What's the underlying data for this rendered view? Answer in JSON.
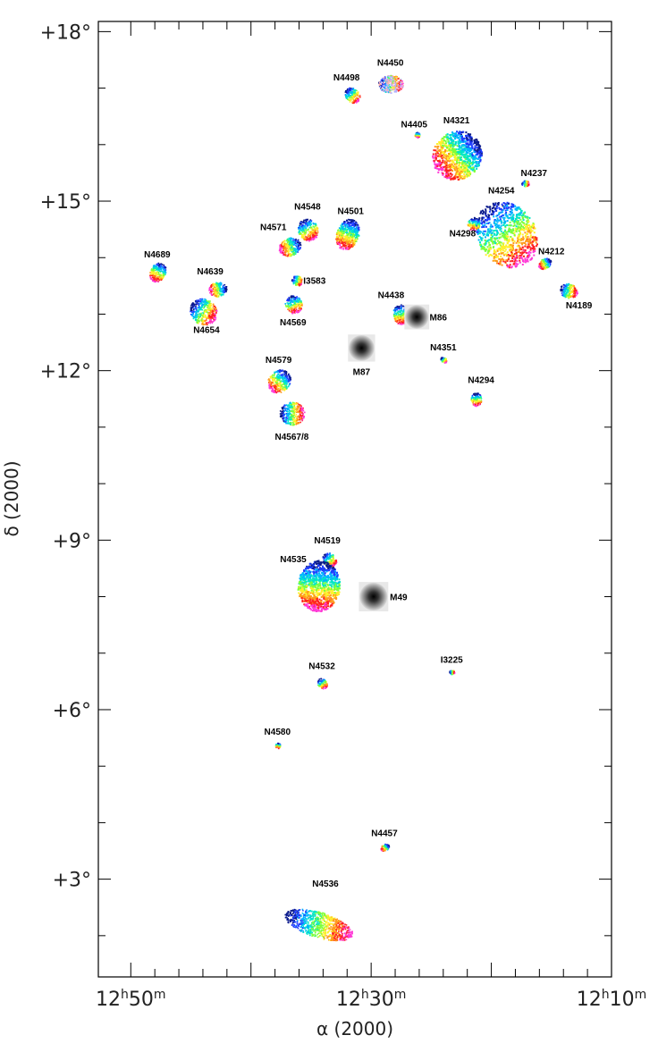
{
  "axes": {
    "x_title": "α (2000)",
    "y_title": "δ (2000)",
    "x_ticks": [
      {
        "h": "12",
        "hsup": "h",
        "m": "50",
        "msup": "m",
        "ra_min": 50
      },
      {
        "h": "12",
        "hsup": "h",
        "m": "30",
        "msup": "m",
        "ra_min": 30
      },
      {
        "h": "12",
        "hsup": "h",
        "m": "10",
        "msup": "m",
        "ra_min": 10
      }
    ],
    "y_ticks": [
      {
        "label": "+18°",
        "dec": 18
      },
      {
        "label": "+15°",
        "dec": 15
      },
      {
        "label": "+12°",
        "dec": 12
      },
      {
        "label": "+9°",
        "dec": 9
      },
      {
        "label": "+6°",
        "dec": 6
      },
      {
        "label": "+3°",
        "dec": 3
      }
    ]
  },
  "galaxies": [
    {
      "name": "N4450",
      "ra": 28.4,
      "dec": 17.08,
      "size": 0.22,
      "style": "faint"
    },
    {
      "name": "N4498",
      "ra": 31.6,
      "dec": 16.88,
      "size": 0.15,
      "style": "vel"
    },
    {
      "name": "N4405",
      "ra": 26.2,
      "dec": 16.18,
      "size": 0.05,
      "style": "vel"
    },
    {
      "name": "N4321",
      "ra": 22.9,
      "dec": 15.82,
      "size": 0.45,
      "style": "big"
    },
    {
      "name": "N4237",
      "ra": 17.2,
      "dec": 15.32,
      "size": 0.07,
      "style": "vel"
    },
    {
      "name": "N4254",
      "ra": 18.8,
      "dec": 14.42,
      "size": 0.62,
      "style": "big"
    },
    {
      "name": "N4298",
      "ra": 21.5,
      "dec": 14.6,
      "size": 0.12,
      "style": "vel"
    },
    {
      "name": "N4212",
      "ra": 15.6,
      "dec": 13.9,
      "size": 0.12,
      "style": "vel"
    },
    {
      "name": "N4189",
      "ra": 13.6,
      "dec": 13.42,
      "size": 0.16,
      "style": "vel"
    },
    {
      "name": "N4548",
      "ra": 35.3,
      "dec": 14.5,
      "size": 0.2,
      "style": "vel"
    },
    {
      "name": "N4501",
      "ra": 32.0,
      "dec": 14.42,
      "size": 0.28,
      "style": "vel"
    },
    {
      "name": "N4571",
      "ra": 36.8,
      "dec": 14.2,
      "size": 0.2,
      "style": "vel"
    },
    {
      "name": "I3583",
      "ra": 36.2,
      "dec": 13.6,
      "size": 0.1,
      "style": "vel"
    },
    {
      "name": "N4569",
      "ra": 36.5,
      "dec": 13.18,
      "size": 0.16,
      "style": "vel"
    },
    {
      "name": "N4689",
      "ra": 47.8,
      "dec": 13.75,
      "size": 0.18,
      "style": "vel"
    },
    {
      "name": "N4639",
      "ra": 42.8,
      "dec": 13.45,
      "size": 0.16,
      "style": "vel"
    },
    {
      "name": "N4654",
      "ra": 44.0,
      "dec": 13.05,
      "size": 0.25,
      "style": "vel"
    },
    {
      "name": "N4438",
      "ra": 27.6,
      "dec": 13.0,
      "size": 0.18,
      "style": "vel"
    },
    {
      "name": "M86",
      "ra": 26.2,
      "dec": 12.95,
      "size": 0.22,
      "style": "elliptical"
    },
    {
      "name": "M87",
      "ra": 30.8,
      "dec": 12.4,
      "size": 0.24,
      "style": "elliptical"
    },
    {
      "name": "N4351",
      "ra": 24.0,
      "dec": 12.2,
      "size": 0.06,
      "style": "vel"
    },
    {
      "name": "N4294",
      "ra": 21.3,
      "dec": 11.5,
      "size": 0.12,
      "style": "vel"
    },
    {
      "name": "N4579",
      "ra": 37.7,
      "dec": 11.82,
      "size": 0.22,
      "style": "vel"
    },
    {
      "name": "N4567/8",
      "ra": 36.6,
      "dec": 11.25,
      "size": 0.22,
      "style": "vel"
    },
    {
      "name": "N4519",
      "ra": 33.5,
      "dec": 8.66,
      "size": 0.14,
      "style": "vel"
    },
    {
      "name": "N4535",
      "ra": 34.4,
      "dec": 8.2,
      "size": 0.45,
      "style": "big"
    },
    {
      "name": "M49",
      "ra": 29.8,
      "dec": 8.0,
      "size": 0.26,
      "style": "elliptical"
    },
    {
      "name": "I3225",
      "ra": 23.3,
      "dec": 6.67,
      "size": 0.05,
      "style": "vel"
    },
    {
      "name": "N4532",
      "ra": 34.1,
      "dec": 6.47,
      "size": 0.1,
      "style": "vel"
    },
    {
      "name": "N4580",
      "ra": 37.8,
      "dec": 5.37,
      "size": 0.05,
      "style": "vel"
    },
    {
      "name": "N4457",
      "ra": 28.9,
      "dec": 3.57,
      "size": 0.08,
      "style": "vel"
    },
    {
      "name": "N4536",
      "ra": 34.4,
      "dec": 2.2,
      "size": 0.5,
      "style": "elongated"
    }
  ],
  "colors": {
    "frame": "#000000",
    "ramp": [
      "#0a1a8c",
      "#1f3cff",
      "#00b4ff",
      "#00e6c8",
      "#7dff3a",
      "#fff02a",
      "#ff9a1a",
      "#ff2020",
      "#ff3ad6"
    ]
  }
}
